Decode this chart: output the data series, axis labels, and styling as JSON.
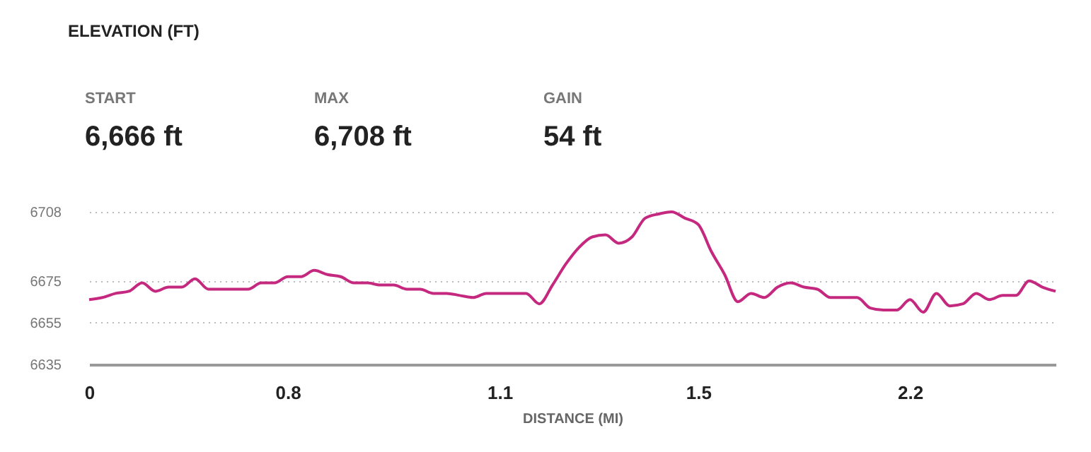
{
  "chart_data": {
    "type": "line",
    "title": "ELEVATION (FT)",
    "xlabel": "DISTANCE (MI)",
    "annotations": [
      "START",
      "6,666 ft",
      "MAX",
      "6,708 ft",
      "GAIN",
      "54 ft"
    ],
    "categories": [
      "0",
      null,
      null,
      null,
      null,
      null,
      null,
      null,
      null,
      null,
      null,
      null,
      null,
      null,
      null,
      "0.8",
      null,
      null,
      null,
      null,
      null,
      null,
      null,
      null,
      null,
      null,
      null,
      null,
      null,
      null,
      null,
      "1.1",
      null,
      null,
      null,
      null,
      null,
      null,
      null,
      null,
      null,
      null,
      null,
      null,
      null,
      null,
      "1.5",
      null,
      null,
      null,
      null,
      null,
      null,
      null,
      null,
      null,
      null,
      null,
      null,
      null,
      null,
      null,
      "2.2",
      null,
      null,
      null,
      null,
      null,
      null,
      null,
      null,
      null,
      null,
      null
    ],
    "series": [
      {
        "color": "#c4287f",
        "values": [
          6666,
          6667,
          6669,
          6670,
          6674,
          6670,
          6672,
          6672,
          6676,
          6671,
          6671,
          6671,
          6671,
          6674,
          6674,
          6677,
          6677,
          6680,
          6678,
          6677,
          6674,
          6674,
          6673,
          6673,
          6671,
          6671,
          6669,
          6669,
          6668,
          6667,
          6669,
          6669,
          6669,
          6669,
          6664,
          6673,
          6683,
          6691,
          6696,
          6697,
          6693,
          6696,
          6705,
          6707,
          6708,
          6705,
          6702,
          6689,
          6678,
          6665,
          6669,
          6667,
          6672,
          6674,
          6672,
          6671,
          6667,
          6667,
          6667,
          6662,
          6661,
          6661,
          6666,
          6660,
          6669,
          6663,
          6664,
          6669,
          6666,
          6668,
          6668,
          6675,
          6672,
          6670
        ]
      }
    ],
    "ylim": [
      6635,
      6708
    ],
    "yticks": [
      6635,
      6655,
      6675,
      6708
    ],
    "grid": "y",
    "marker": "none",
    "line_style": "solid"
  }
}
